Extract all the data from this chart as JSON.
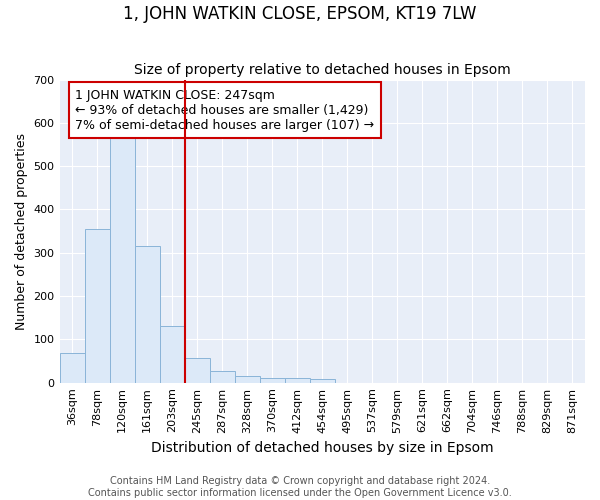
{
  "title": "1, JOHN WATKIN CLOSE, EPSOM, KT19 7LW",
  "subtitle": "Size of property relative to detached houses in Epsom",
  "xlabel": "Distribution of detached houses by size in Epsom",
  "ylabel": "Number of detached properties",
  "bar_labels": [
    "36sqm",
    "78sqm",
    "120sqm",
    "161sqm",
    "203sqm",
    "245sqm",
    "287sqm",
    "328sqm",
    "370sqm",
    "412sqm",
    "454sqm",
    "495sqm",
    "537sqm",
    "579sqm",
    "621sqm",
    "662sqm",
    "704sqm",
    "746sqm",
    "788sqm",
    "829sqm",
    "871sqm"
  ],
  "bar_values": [
    68,
    355,
    568,
    315,
    130,
    58,
    28,
    15,
    10,
    10,
    8,
    0,
    0,
    0,
    0,
    0,
    0,
    0,
    0,
    0,
    0
  ],
  "bar_color": "#dce9f8",
  "bar_edge_color": "#8ab4d8",
  "property_line_index": 5,
  "property_line_color": "#cc0000",
  "annotation_text": "1 JOHN WATKIN CLOSE: 247sqm\n← 93% of detached houses are smaller (1,429)\n7% of semi-detached houses are larger (107) →",
  "annotation_box_color": "#cc0000",
  "annotation_text_color": "#000000",
  "ylim": [
    0,
    700
  ],
  "yticks": [
    0,
    100,
    200,
    300,
    400,
    500,
    600,
    700
  ],
  "bg_color": "#ffffff",
  "plot_bg_color": "#e8eef8",
  "grid_color": "#ffffff",
  "footer_line1": "Contains HM Land Registry data © Crown copyright and database right 2024.",
  "footer_line2": "Contains public sector information licensed under the Open Government Licence v3.0.",
  "title_fontsize": 12,
  "subtitle_fontsize": 10,
  "xlabel_fontsize": 10,
  "ylabel_fontsize": 9,
  "tick_fontsize": 8,
  "footer_fontsize": 7,
  "annotation_fontsize": 9
}
